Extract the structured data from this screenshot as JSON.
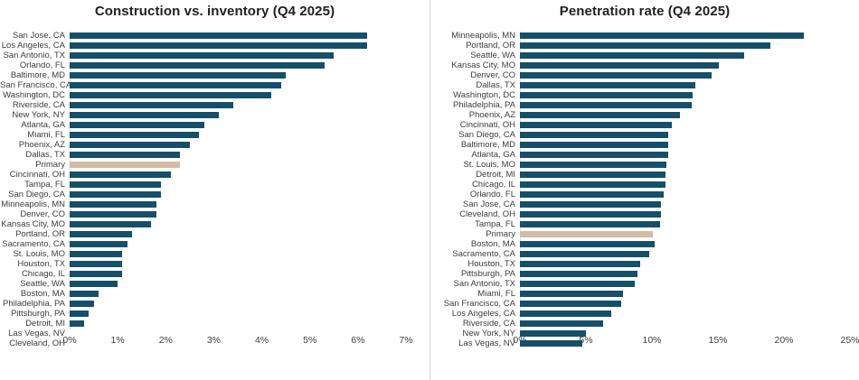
{
  "chart_data": [
    {
      "type": "bar",
      "orientation": "horizontal",
      "title": "Construction vs. inventory (Q4 2025)",
      "xlabel": "",
      "ylabel": "",
      "xlim": [
        0,
        7
      ],
      "x_ticks": [
        "0%",
        "1%",
        "2%",
        "3%",
        "4%",
        "5%",
        "6%",
        "7%"
      ],
      "grid": false,
      "bar_color": "#154f69",
      "highlight_color": "#d3bba4",
      "highlight_category": "Primary",
      "categories": [
        "San Jose, CA",
        "Los Angeles, CA",
        "San Antonio, TX",
        "Orlando, FL",
        "Baltimore, MD",
        "San Francisco, CA",
        "Washington, DC",
        "Riverside, CA",
        "New York, NY",
        "Atlanta, GA",
        "Miami, FL",
        "Phoenix, AZ",
        "Dallas, TX",
        "Primary",
        "Cincinnati, OH",
        "Tampa, FL",
        "San Diego, CA",
        "Minneapolis, MN",
        "Denver, CO",
        "Kansas City, MO",
        "Portland, OR",
        "Sacramento, CA",
        "St. Louis, MO",
        "Houston, TX",
        "Chicago, IL",
        "Seattle, WA",
        "Boston, MA",
        "Philadelphia, PA",
        "Pittsburgh, PA",
        "Detroit, MI",
        "Las Vegas, NV",
        "Cleveland, OH"
      ],
      "values": [
        6.2,
        6.2,
        5.5,
        5.3,
        4.5,
        4.4,
        4.2,
        3.4,
        3.1,
        2.8,
        2.7,
        2.5,
        2.3,
        2.3,
        2.1,
        1.9,
        1.9,
        1.8,
        1.8,
        1.7,
        1.3,
        1.2,
        1.1,
        1.1,
        1.1,
        1.0,
        0.6,
        0.5,
        0.4,
        0.3,
        0.0,
        0.0
      ]
    },
    {
      "type": "bar",
      "orientation": "horizontal",
      "title": "Penetration rate (Q4 2025)",
      "xlabel": "",
      "ylabel": "",
      "xlim": [
        0,
        25
      ],
      "x_ticks": [
        "0%",
        "5%",
        "10%",
        "15%",
        "20%",
        "25%"
      ],
      "grid": false,
      "bar_color": "#154f69",
      "highlight_color": "#d3bba4",
      "highlight_category": "Primary",
      "categories": [
        "Minneapolis, MN",
        "Portland, OR",
        "Seattle, WA",
        "Kansas City, MO",
        "Denver, CO",
        "Dallas, TX",
        "Washington, DC",
        "Philadelphia, PA",
        "Phoenix, AZ",
        "Cincinnati, OH",
        "San Diego, CA",
        "Baltimore, MD",
        "Atlanta, GA",
        "St. Louis, MO",
        "Detroit, MI",
        "Chicago, IL",
        "Orlando, FL",
        "San Jose, CA",
        "Cleveland, OH",
        "Tampa, FL",
        "Primary",
        "Boston, MA",
        "Sacramento, CA",
        "Houston, TX",
        "Pittsburgh, PA",
        "San Antonio, TX",
        "Miami, FL",
        "San Francisco, CA",
        "Los Angeles, CA",
        "Riverside, CA",
        "New York, NY",
        "Las Vegas, NV"
      ],
      "values": [
        21.5,
        19.0,
        17.0,
        15.1,
        14.5,
        13.3,
        13.1,
        13.0,
        12.1,
        11.5,
        11.2,
        11.2,
        11.2,
        11.1,
        11.0,
        11.0,
        10.9,
        10.7,
        10.7,
        10.6,
        10.1,
        10.2,
        9.8,
        9.1,
        8.9,
        8.7,
        7.8,
        7.7,
        6.9,
        6.3,
        5.0,
        4.7
      ]
    }
  ]
}
